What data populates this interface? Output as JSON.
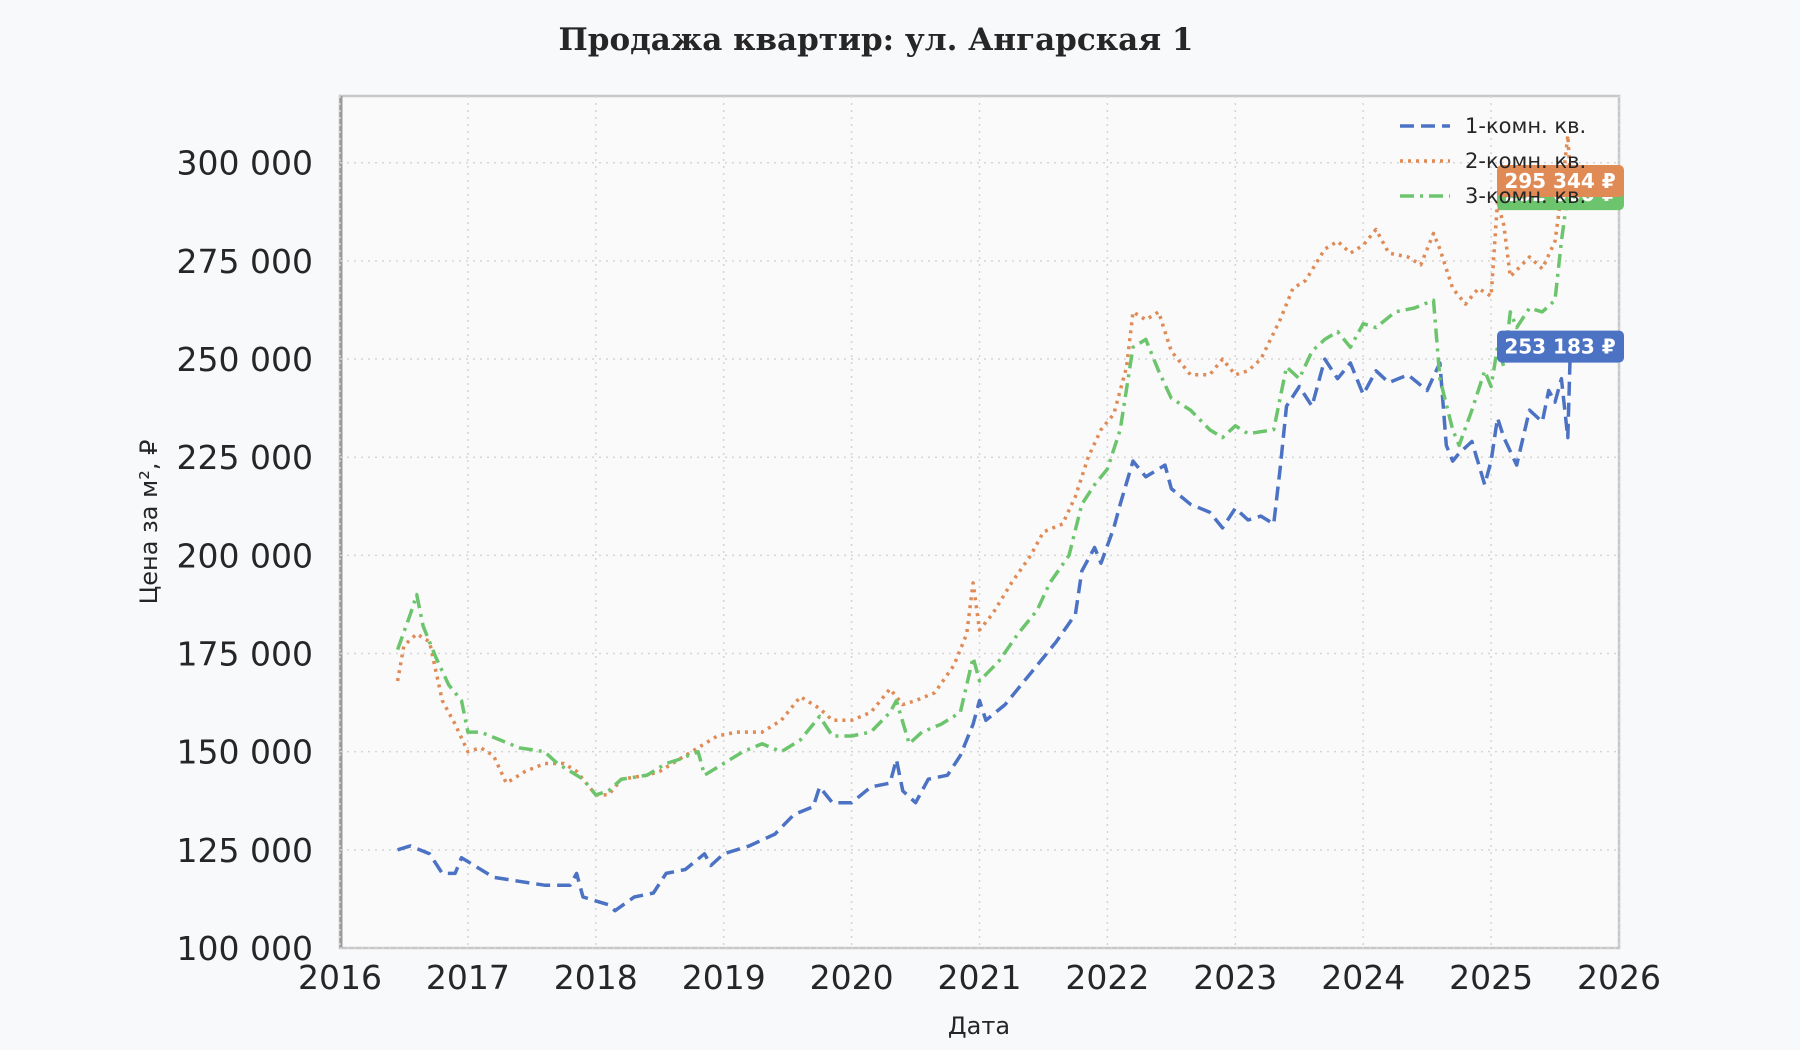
{
  "chart_data": {
    "type": "line",
    "title": "Продажа квартир: ул. Ангарская 1",
    "xlabel": "Дата",
    "ylabel": "Цена за м², ₽",
    "xlim": [
      2016,
      2026
    ],
    "ylim": [
      100000,
      317000
    ],
    "x_ticks": [
      2016,
      2017,
      2018,
      2019,
      2020,
      2021,
      2022,
      2023,
      2024,
      2025,
      2026
    ],
    "x_tick_labels": [
      "2016",
      "2017",
      "2018",
      "2019",
      "2020",
      "2021",
      "2022",
      "2023",
      "2024",
      "2025",
      "2026"
    ],
    "y_ticks": [
      100000,
      125000,
      150000,
      175000,
      200000,
      225000,
      250000,
      275000,
      300000
    ],
    "y_tick_labels": [
      "100 000",
      "125 000",
      "150 000",
      "175 000",
      "200 000",
      "225 000",
      "250 000",
      "275 000",
      "300 000"
    ],
    "grid": true,
    "legend_position": "top-right",
    "series": [
      {
        "name": "1-комн. кв.",
        "color": "#4c72c4",
        "dash": "dashed",
        "end_label": "253 183 ₽",
        "points": [
          [
            2016.45,
            125000
          ],
          [
            2016.55,
            126000
          ],
          [
            2016.7,
            124000
          ],
          [
            2016.8,
            119000
          ],
          [
            2016.9,
            119000
          ],
          [
            2016.95,
            123000
          ],
          [
            2017.05,
            121000
          ],
          [
            2017.2,
            118000
          ],
          [
            2017.4,
            117000
          ],
          [
            2017.6,
            116000
          ],
          [
            2017.8,
            116000
          ],
          [
            2017.85,
            119000
          ],
          [
            2017.9,
            113000
          ],
          [
            2018.0,
            112000
          ],
          [
            2018.1,
            111000
          ],
          [
            2018.15,
            109500
          ],
          [
            2018.3,
            113000
          ],
          [
            2018.45,
            114000
          ],
          [
            2018.55,
            119000
          ],
          [
            2018.7,
            120000
          ],
          [
            2018.85,
            124000
          ],
          [
            2018.9,
            121000
          ],
          [
            2019.0,
            124000
          ],
          [
            2019.2,
            126000
          ],
          [
            2019.4,
            129000
          ],
          [
            2019.55,
            134000
          ],
          [
            2019.7,
            136000
          ],
          [
            2019.75,
            141000
          ],
          [
            2019.85,
            137000
          ],
          [
            2020.0,
            137000
          ],
          [
            2020.15,
            141000
          ],
          [
            2020.3,
            142000
          ],
          [
            2020.35,
            148000
          ],
          [
            2020.4,
            140000
          ],
          [
            2020.5,
            137000
          ],
          [
            2020.6,
            143000
          ],
          [
            2020.75,
            144000
          ],
          [
            2020.85,
            149000
          ],
          [
            2020.95,
            157000
          ],
          [
            2021.0,
            163000
          ],
          [
            2021.05,
            158000
          ],
          [
            2021.2,
            162000
          ],
          [
            2021.35,
            168000
          ],
          [
            2021.5,
            174000
          ],
          [
            2021.6,
            178000
          ],
          [
            2021.75,
            185000
          ],
          [
            2021.8,
            196000
          ],
          [
            2021.9,
            202000
          ],
          [
            2021.95,
            198000
          ],
          [
            2022.05,
            207000
          ],
          [
            2022.1,
            213000
          ],
          [
            2022.2,
            224000
          ],
          [
            2022.3,
            220000
          ],
          [
            2022.45,
            223000
          ],
          [
            2022.5,
            217000
          ],
          [
            2022.65,
            213000
          ],
          [
            2022.8,
            211000
          ],
          [
            2022.9,
            207000
          ],
          [
            2023.0,
            212000
          ],
          [
            2023.1,
            209000
          ],
          [
            2023.2,
            210000
          ],
          [
            2023.3,
            208000
          ],
          [
            2023.35,
            222000
          ],
          [
            2023.4,
            238000
          ],
          [
            2023.5,
            243000
          ],
          [
            2023.6,
            238000
          ],
          [
            2023.7,
            250000
          ],
          [
            2023.8,
            245000
          ],
          [
            2023.9,
            249000
          ],
          [
            2024.0,
            241000
          ],
          [
            2024.1,
            247000
          ],
          [
            2024.2,
            244000
          ],
          [
            2024.35,
            246000
          ],
          [
            2024.5,
            242000
          ],
          [
            2024.6,
            249000
          ],
          [
            2024.65,
            228000
          ],
          [
            2024.7,
            224000
          ],
          [
            2024.75,
            226000
          ],
          [
            2024.85,
            229000
          ],
          [
            2024.95,
            218000
          ],
          [
            2025.0,
            224000
          ],
          [
            2025.05,
            235000
          ],
          [
            2025.1,
            230000
          ],
          [
            2025.2,
            223000
          ],
          [
            2025.3,
            237000
          ],
          [
            2025.4,
            234000
          ],
          [
            2025.45,
            242000
          ],
          [
            2025.5,
            239000
          ],
          [
            2025.55,
            245000
          ],
          [
            2025.6,
            230000
          ],
          [
            2025.62,
            253183
          ]
        ]
      },
      {
        "name": "2-комн. кв.",
        "color": "#e08a55",
        "dash": "dotted",
        "end_label": "295 344 ₽",
        "points": [
          [
            2016.45,
            168000
          ],
          [
            2016.5,
            177000
          ],
          [
            2016.6,
            180000
          ],
          [
            2016.7,
            178000
          ],
          [
            2016.8,
            163000
          ],
          [
            2016.9,
            157000
          ],
          [
            2017.0,
            150000
          ],
          [
            2017.1,
            151000
          ],
          [
            2017.2,
            149000
          ],
          [
            2017.3,
            142000
          ],
          [
            2017.45,
            145000
          ],
          [
            2017.6,
            147000
          ],
          [
            2017.75,
            147000
          ],
          [
            2017.85,
            145000
          ],
          [
            2018.0,
            139000
          ],
          [
            2018.1,
            139000
          ],
          [
            2018.2,
            143000
          ],
          [
            2018.4,
            144000
          ],
          [
            2018.5,
            145000
          ],
          [
            2018.7,
            149000
          ],
          [
            2018.85,
            152000
          ],
          [
            2018.95,
            154000
          ],
          [
            2019.1,
            155000
          ],
          [
            2019.3,
            155000
          ],
          [
            2019.45,
            158000
          ],
          [
            2019.6,
            164000
          ],
          [
            2019.75,
            161000
          ],
          [
            2019.85,
            158000
          ],
          [
            2020.0,
            158000
          ],
          [
            2020.15,
            160000
          ],
          [
            2020.3,
            166000
          ],
          [
            2020.4,
            162000
          ],
          [
            2020.5,
            163000
          ],
          [
            2020.65,
            165000
          ],
          [
            2020.8,
            172000
          ],
          [
            2020.9,
            180000
          ],
          [
            2020.95,
            193000
          ],
          [
            2021.0,
            181000
          ],
          [
            2021.1,
            185000
          ],
          [
            2021.25,
            193000
          ],
          [
            2021.4,
            200000
          ],
          [
            2021.5,
            206000
          ],
          [
            2021.65,
            208000
          ],
          [
            2021.75,
            215000
          ],
          [
            2021.85,
            225000
          ],
          [
            2021.95,
            232000
          ],
          [
            2022.05,
            236000
          ],
          [
            2022.15,
            248000
          ],
          [
            2022.2,
            262000
          ],
          [
            2022.3,
            260000
          ],
          [
            2022.4,
            262000
          ],
          [
            2022.5,
            252000
          ],
          [
            2022.65,
            246000
          ],
          [
            2022.8,
            246000
          ],
          [
            2022.9,
            250000
          ],
          [
            2023.0,
            246000
          ],
          [
            2023.1,
            247000
          ],
          [
            2023.2,
            250000
          ],
          [
            2023.35,
            260000
          ],
          [
            2023.45,
            268000
          ],
          [
            2023.55,
            270000
          ],
          [
            2023.7,
            278000
          ],
          [
            2023.8,
            280000
          ],
          [
            2023.9,
            277000
          ],
          [
            2024.0,
            279000
          ],
          [
            2024.1,
            283000
          ],
          [
            2024.2,
            277000
          ],
          [
            2024.35,
            276000
          ],
          [
            2024.45,
            274000
          ],
          [
            2024.55,
            282000
          ],
          [
            2024.6,
            278000
          ],
          [
            2024.7,
            268000
          ],
          [
            2024.8,
            264000
          ],
          [
            2024.9,
            268000
          ],
          [
            2025.0,
            266000
          ],
          [
            2025.05,
            290000
          ],
          [
            2025.1,
            284000
          ],
          [
            2025.15,
            271000
          ],
          [
            2025.3,
            276000
          ],
          [
            2025.4,
            273000
          ],
          [
            2025.5,
            280000
          ],
          [
            2025.55,
            292000
          ],
          [
            2025.6,
            307000
          ],
          [
            2025.62,
            295344
          ]
        ]
      },
      {
        "name": "3-комн. кв.",
        "color": "#6cc56c",
        "dash": "dashdot",
        "end_label": "292 000 ₽",
        "points": [
          [
            2016.45,
            176000
          ],
          [
            2016.55,
            185000
          ],
          [
            2016.6,
            190000
          ],
          [
            2016.65,
            182000
          ],
          [
            2016.75,
            174000
          ],
          [
            2016.85,
            167000
          ],
          [
            2016.95,
            163000
          ],
          [
            2017.0,
            155000
          ],
          [
            2017.1,
            155000
          ],
          [
            2017.25,
            153000
          ],
          [
            2017.4,
            151000
          ],
          [
            2017.6,
            150000
          ],
          [
            2017.7,
            147000
          ],
          [
            2017.8,
            145000
          ],
          [
            2017.9,
            143000
          ],
          [
            2018.0,
            139000
          ],
          [
            2018.1,
            140000
          ],
          [
            2018.2,
            143000
          ],
          [
            2018.4,
            144000
          ],
          [
            2018.55,
            147000
          ],
          [
            2018.65,
            148000
          ],
          [
            2018.8,
            150000
          ],
          [
            2018.85,
            144000
          ],
          [
            2019.0,
            147000
          ],
          [
            2019.15,
            150000
          ],
          [
            2019.3,
            152000
          ],
          [
            2019.45,
            150000
          ],
          [
            2019.6,
            153000
          ],
          [
            2019.75,
            159000
          ],
          [
            2019.85,
            154000
          ],
          [
            2020.0,
            154000
          ],
          [
            2020.15,
            155000
          ],
          [
            2020.3,
            160000
          ],
          [
            2020.35,
            163000
          ],
          [
            2020.45,
            152000
          ],
          [
            2020.55,
            155000
          ],
          [
            2020.7,
            157000
          ],
          [
            2020.85,
            160000
          ],
          [
            2020.95,
            174000
          ],
          [
            2021.0,
            168000
          ],
          [
            2021.15,
            173000
          ],
          [
            2021.3,
            180000
          ],
          [
            2021.45,
            186000
          ],
          [
            2021.55,
            193000
          ],
          [
            2021.7,
            200000
          ],
          [
            2021.8,
            213000
          ],
          [
            2021.9,
            218000
          ],
          [
            2022.0,
            222000
          ],
          [
            2022.1,
            232000
          ],
          [
            2022.2,
            253000
          ],
          [
            2022.3,
            255000
          ],
          [
            2022.4,
            247000
          ],
          [
            2022.5,
            240000
          ],
          [
            2022.65,
            237000
          ],
          [
            2022.8,
            232000
          ],
          [
            2022.9,
            230000
          ],
          [
            2023.0,
            233000
          ],
          [
            2023.1,
            231000
          ],
          [
            2023.3,
            232000
          ],
          [
            2023.4,
            248000
          ],
          [
            2023.5,
            245000
          ],
          [
            2023.6,
            252000
          ],
          [
            2023.7,
            255000
          ],
          [
            2023.8,
            257000
          ],
          [
            2023.9,
            253000
          ],
          [
            2024.0,
            259000
          ],
          [
            2024.1,
            258000
          ],
          [
            2024.25,
            262000
          ],
          [
            2024.4,
            263000
          ],
          [
            2024.55,
            265000
          ],
          [
            2024.6,
            245000
          ],
          [
            2024.7,
            232000
          ],
          [
            2024.75,
            228000
          ],
          [
            2024.85,
            237000
          ],
          [
            2024.95,
            247000
          ],
          [
            2025.0,
            243000
          ],
          [
            2025.05,
            253000
          ],
          [
            2025.1,
            248000
          ],
          [
            2025.15,
            262000
          ],
          [
            2025.2,
            258000
          ],
          [
            2025.3,
            263000
          ],
          [
            2025.4,
            262000
          ],
          [
            2025.5,
            265000
          ],
          [
            2025.55,
            280000
          ],
          [
            2025.6,
            292000
          ],
          [
            2025.62,
            292000
          ]
        ]
      }
    ]
  }
}
